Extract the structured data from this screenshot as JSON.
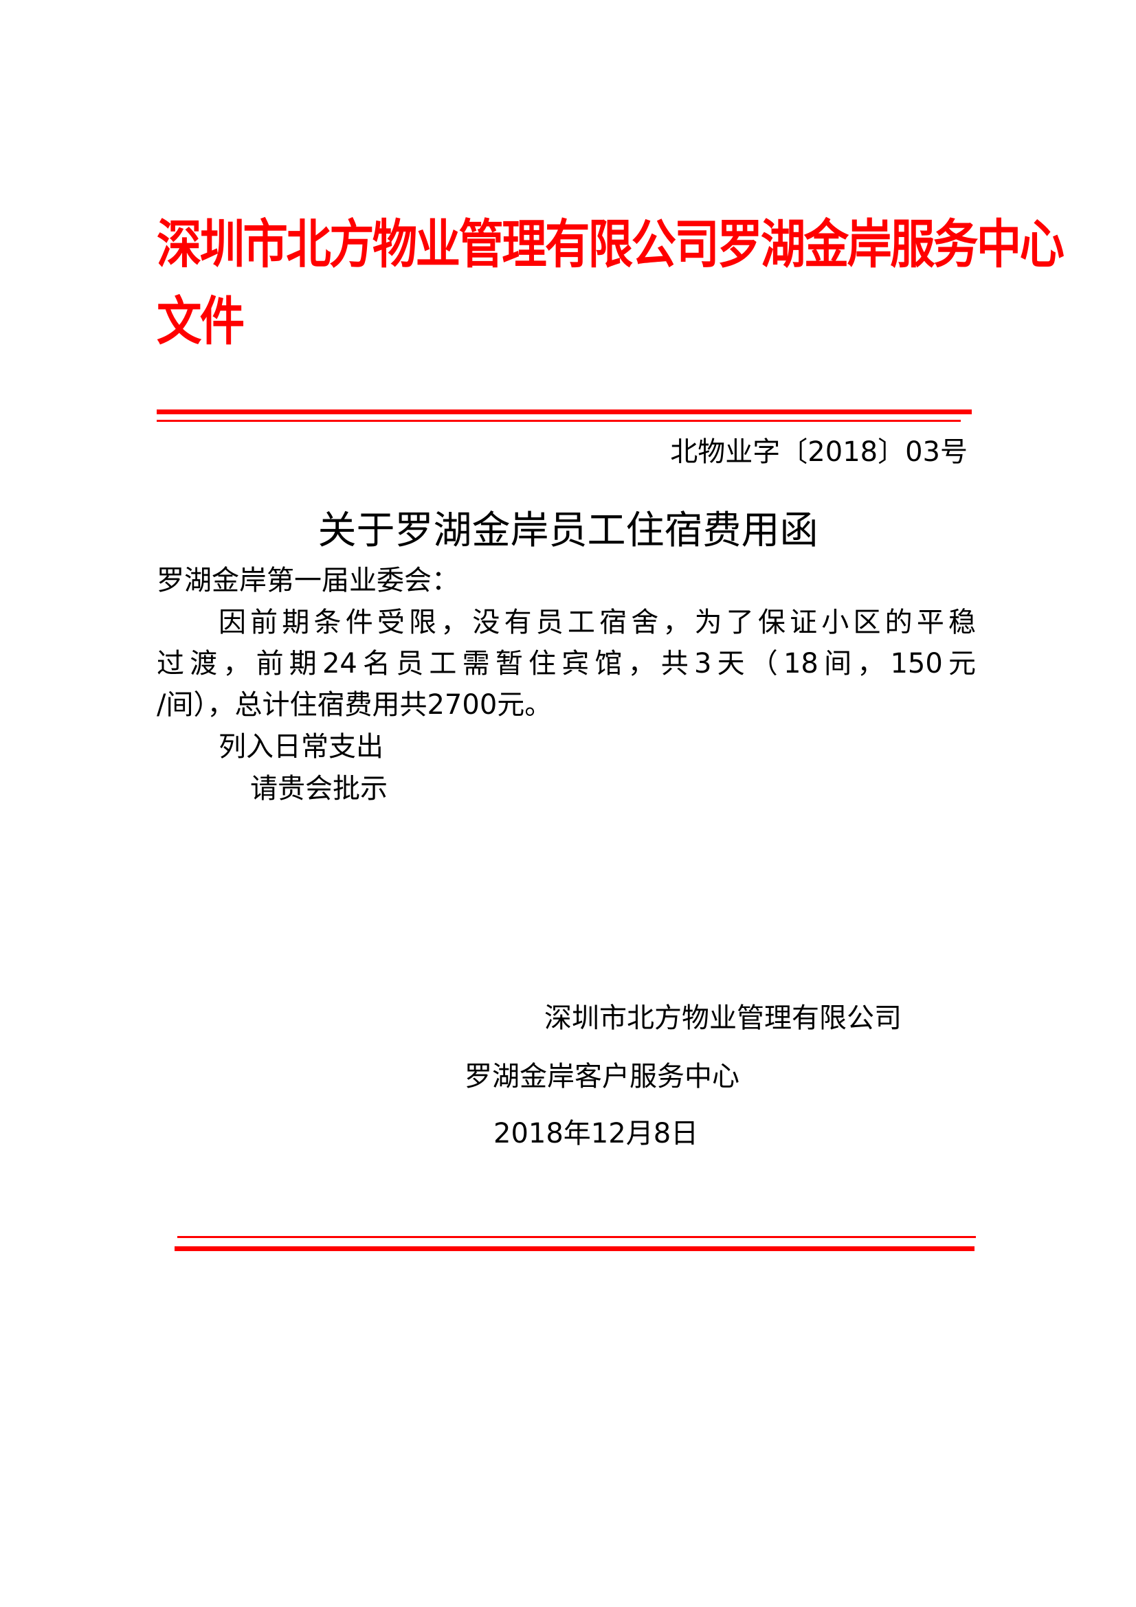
{
  "header": {
    "title_line1": "深圳市北方物业管理有限公司罗湖金岸服务中心",
    "title_line2": "文件",
    "accent_color": "#ff0000"
  },
  "doc_number": "北物业字〔2018〕03号",
  "letter": {
    "title": "关于罗湖金岸员工住宿费用函",
    "salutation": "罗湖金岸第一届业委会：",
    "body_lines": [
      "因前期条件受限，没有员工宿舍，为了保证小区的平稳",
      "过渡，前期24名员工需暂住宾馆，共3天（18间，150元",
      "/间），总计住宿费用共2700元。"
    ],
    "note_1": "列入日常支出",
    "note_2": "请贵会批示"
  },
  "signature": {
    "company": "深圳市北方物业管理有限公司",
    "center": "罗湖金岸客户服务中心",
    "date": "2018年12月8日"
  }
}
